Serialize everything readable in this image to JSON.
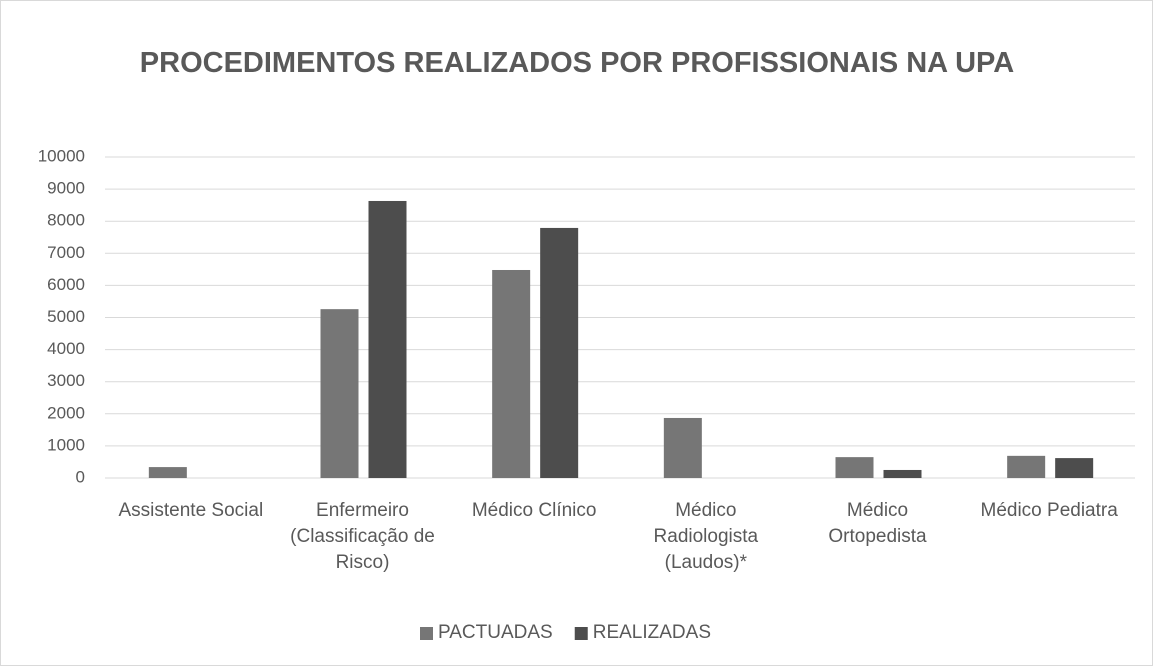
{
  "chart_data": {
    "type": "bar",
    "title": "PROCEDIMENTOS REALIZADOS POR PROFISSIONAIS NA UPA",
    "categories": [
      "Assistente Social",
      "Enfermeiro (Classificação de Risco)",
      "Médico Clínico",
      "Médico Radiologista (Laudos)*",
      "Médico Ortopedista",
      "Médico Pediatra"
    ],
    "series": [
      {
        "name": "PACTUADAS",
        "color": "#767676",
        "values": [
          340,
          5260,
          6480,
          1870,
          650,
          690
        ]
      },
      {
        "name": "REALIZADAS",
        "color": "#4d4d4d",
        "values": [
          0,
          8630,
          7790,
          0,
          250,
          620
        ]
      }
    ],
    "ylim": [
      0,
      10000
    ],
    "yticks": [
      0,
      1000,
      2000,
      3000,
      4000,
      5000,
      6000,
      7000,
      8000,
      9000,
      10000
    ],
    "grid": true,
    "legend": "bottom"
  }
}
